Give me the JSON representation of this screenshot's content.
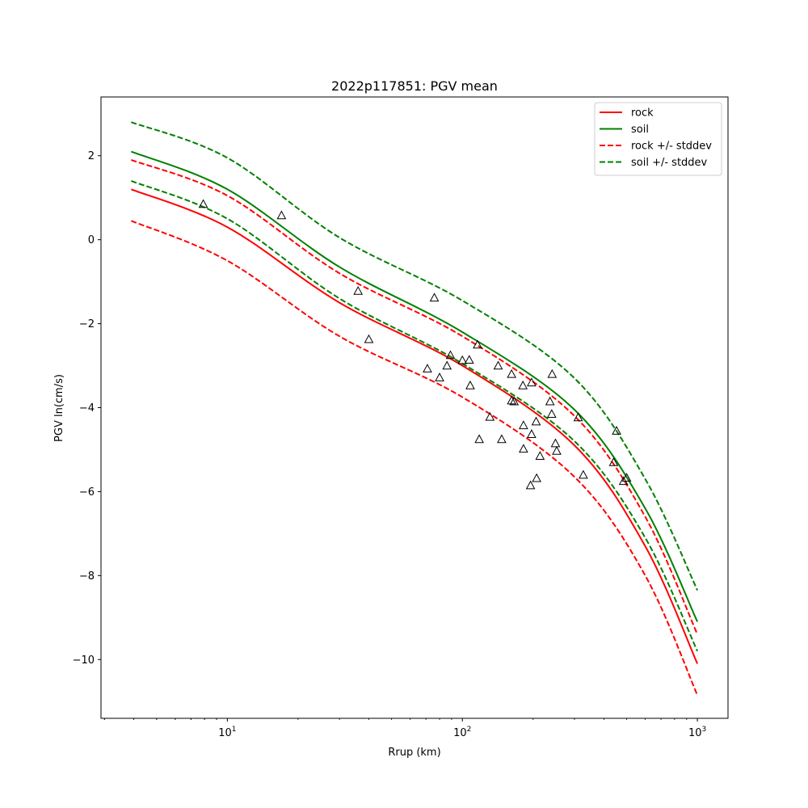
{
  "chart_data": {
    "type": "scatter",
    "title": "2022p117851: PGV mean",
    "xlabel": "Rrup (km)",
    "ylabel": "PGV ln(cm/s)",
    "xscale": "log",
    "xlim": [
      2.9,
      1350
    ],
    "ylim": [
      -11.4,
      3.4
    ],
    "grid": false,
    "legend_position": "top-right",
    "x_ticks": [
      {
        "value": 10,
        "base": "10",
        "exp": "1"
      },
      {
        "value": 100,
        "base": "10",
        "exp": "2"
      },
      {
        "value": 1000,
        "base": "10",
        "exp": "3"
      }
    ],
    "y_ticks": [
      {
        "value": 2,
        "label": "2"
      },
      {
        "value": 0,
        "label": "0"
      },
      {
        "value": -2,
        "label": "−2"
      },
      {
        "value": -4,
        "label": "−4"
      },
      {
        "value": -6,
        "label": "−6"
      },
      {
        "value": -8,
        "label": "−8"
      },
      {
        "value": -10,
        "label": "−10"
      }
    ],
    "series": [
      {
        "name": "rock",
        "color": "#ff0000",
        "style": "solid",
        "x": [
          3.9,
          10,
          30,
          100,
          300,
          600,
          1000
        ],
        "y": [
          1.2,
          0.3,
          -1.5,
          -3.0,
          -4.9,
          -7.3,
          -10.1
        ]
      },
      {
        "name": "soil",
        "color": "#008000",
        "style": "solid",
        "x": [
          3.9,
          10,
          30,
          100,
          300,
          600,
          1000
        ],
        "y": [
          2.1,
          1.2,
          -0.65,
          -2.2,
          -4.05,
          -6.4,
          -9.1
        ]
      },
      {
        "name": "rock +/- stddev",
        "color": "#ff0000",
        "style": "dashed",
        "x": [
          3.9,
          10,
          30,
          100,
          300,
          600,
          1000
        ],
        "y": [
          1.9,
          1.05,
          -0.8,
          -2.3,
          -4.2,
          -6.6,
          -9.4
        ]
      },
      {
        "name": "rock +/- stddev",
        "color": "#ff0000",
        "style": "dashed",
        "hide_legend": true,
        "x": [
          3.9,
          10,
          30,
          100,
          300,
          600,
          1000
        ],
        "y": [
          0.45,
          -0.5,
          -2.3,
          -3.75,
          -5.65,
          -8.0,
          -10.85
        ]
      },
      {
        "name": "soil +/- stddev",
        "color": "#008000",
        "style": "dashed",
        "x": [
          3.9,
          10,
          30,
          100,
          300,
          600,
          1000
        ],
        "y": [
          2.8,
          1.95,
          0.05,
          -1.45,
          -3.3,
          -5.7,
          -8.35
        ]
      },
      {
        "name": "soil +/- stddev",
        "color": "#008000",
        "style": "dashed",
        "hide_legend": true,
        "x": [
          3.9,
          10,
          30,
          100,
          300,
          600,
          1000
        ],
        "y": [
          1.4,
          0.5,
          -1.4,
          -2.95,
          -4.8,
          -7.1,
          -9.8
        ]
      }
    ],
    "observations": {
      "marker": "triangle",
      "points": [
        [
          7.9,
          0.85
        ],
        [
          17,
          0.58
        ],
        [
          36,
          -1.22
        ],
        [
          40,
          -2.37
        ],
        [
          71,
          -3.07
        ],
        [
          76,
          -1.38
        ],
        [
          80,
          -3.28
        ],
        [
          86,
          -3.0
        ],
        [
          89,
          -2.75
        ],
        [
          100,
          -2.87
        ],
        [
          107,
          -2.86
        ],
        [
          108,
          -3.47
        ],
        [
          116,
          -2.5
        ],
        [
          118,
          -4.75
        ],
        [
          131,
          -4.22
        ],
        [
          142,
          -3.0
        ],
        [
          147,
          -4.75
        ],
        [
          162,
          -3.2
        ],
        [
          162,
          -3.83
        ],
        [
          166,
          -3.85
        ],
        [
          181,
          -3.47
        ],
        [
          182,
          -4.42
        ],
        [
          182,
          -4.98
        ],
        [
          195,
          -5.85
        ],
        [
          197,
          -4.63
        ],
        [
          197,
          -3.4
        ],
        [
          206,
          -4.33
        ],
        [
          207,
          -5.68
        ],
        [
          214,
          -5.15
        ],
        [
          236,
          -3.85
        ],
        [
          240,
          -4.15
        ],
        [
          241,
          -3.2
        ],
        [
          249,
          -4.85
        ],
        [
          252,
          -5.03
        ],
        [
          311,
          -4.23
        ],
        [
          327,
          -5.6
        ],
        [
          440,
          -5.3
        ],
        [
          453,
          -4.55
        ],
        [
          485,
          -5.75
        ],
        [
          500,
          -5.67
        ]
      ]
    }
  }
}
